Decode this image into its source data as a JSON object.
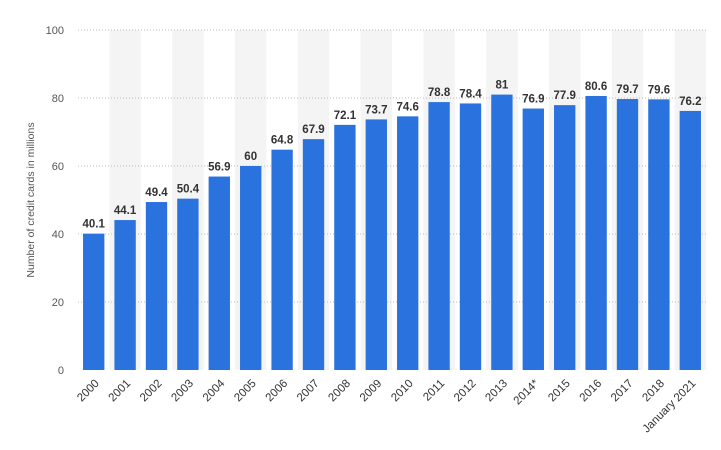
{
  "chart_data": {
    "type": "bar",
    "title": "",
    "xlabel": "",
    "ylabel": "Number of credit cards in millions",
    "ylim": [
      0,
      100
    ],
    "yticks": [
      0,
      20,
      40,
      60,
      80,
      100
    ],
    "grid": "horizontal dotted",
    "legend": "none",
    "categories": [
      "2000",
      "2001",
      "2002",
      "2003",
      "2004",
      "2005",
      "2006",
      "2007",
      "2008",
      "2009",
      "2010",
      "2011",
      "2012",
      "2013",
      "2014*",
      "2015",
      "2016",
      "2017",
      "2018",
      "January 2021"
    ],
    "values": [
      40.1,
      44.1,
      49.4,
      50.4,
      56.9,
      60,
      64.8,
      67.9,
      72.1,
      73.7,
      74.6,
      78.8,
      78.4,
      81,
      76.9,
      77.9,
      80.6,
      79.7,
      79.6,
      76.2
    ],
    "value_labels": [
      "40.1",
      "44.1",
      "49.4",
      "50.4",
      "56.9",
      "60",
      "64.8",
      "67.9",
      "72.1",
      "73.7",
      "74.6",
      "78.8",
      "78.4",
      "81",
      "76.9",
      "77.9",
      "80.6",
      "79.7",
      "79.6",
      "76.2"
    ],
    "colors": {
      "bar": "#2a72de",
      "band": "#f4f4f4",
      "grid": "#bdbdbd",
      "tick_text": "#555555",
      "value_text": "#333333"
    }
  }
}
